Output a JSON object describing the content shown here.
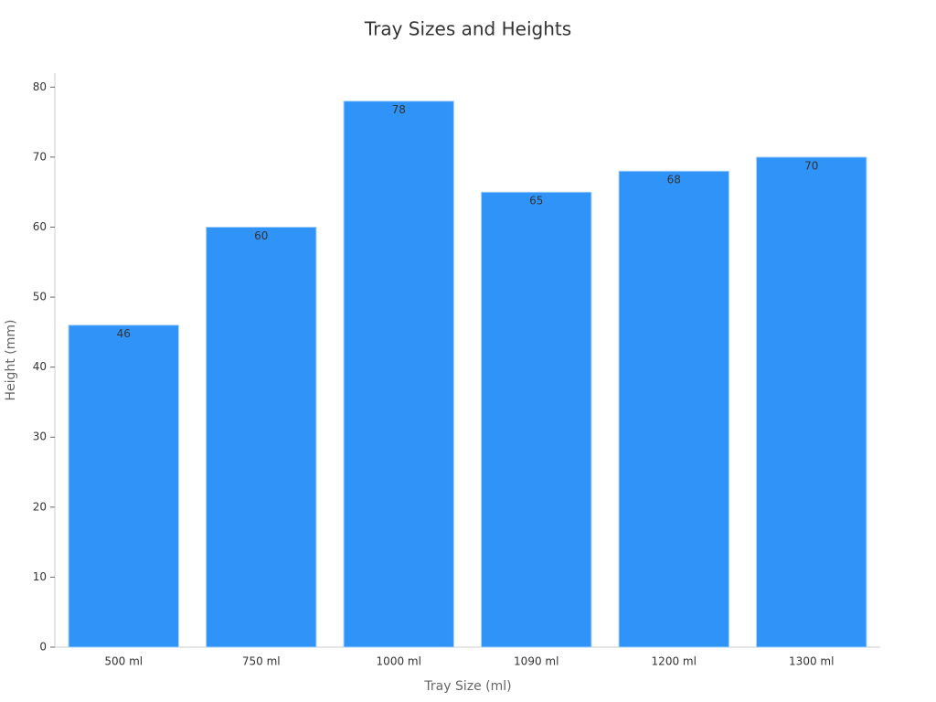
{
  "chart_data": {
    "type": "bar",
    "title": "Tray Sizes and Heights",
    "x_label": "Tray Size (ml)",
    "y_label": "Height (mm)",
    "categories": [
      "500 ml",
      "750 ml",
      "1000 ml",
      "1090 ml",
      "1200 ml",
      "1300 ml"
    ],
    "values": [
      46,
      60,
      78,
      65,
      68,
      70
    ],
    "color": "#2f93f8",
    "ylim": [
      0,
      82
    ],
    "yticks": [
      0,
      10,
      20,
      30,
      40,
      50,
      60,
      70,
      80
    ],
    "grid": false
  }
}
